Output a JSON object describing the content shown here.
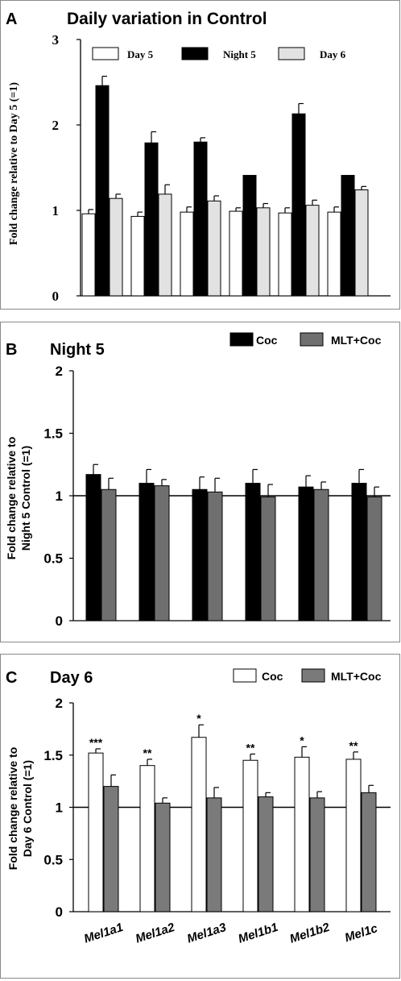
{
  "panels": [
    {
      "letter": "A",
      "title": "Daily variation in Control",
      "ylabel_lines": [
        "Fold change relative to Day 5 (=1)"
      ],
      "yticks": [
        "0",
        "1",
        "2",
        "3"
      ],
      "legend": [
        "Day 5",
        "Night 5",
        "Day 6"
      ]
    },
    {
      "letter": "B",
      "title": "Night 5",
      "ylabel_lines": [
        "Fold change relative to",
        "Night 5 Control (=1)"
      ],
      "yticks": [
        "0",
        "0.5",
        "1",
        "1.5",
        "2"
      ],
      "legend": [
        "Coc",
        "MLT+Coc"
      ]
    },
    {
      "letter": "C",
      "title": "Day 6",
      "ylabel_lines": [
        "Fold change relative to",
        "Day 6 Control (=1)"
      ],
      "yticks": [
        "0",
        "0.5",
        "1",
        "1.5",
        "2"
      ],
      "legend": [
        "Coc",
        "MLT+Coc"
      ]
    }
  ],
  "chart_data": [
    {
      "type": "bar",
      "title": "Daily variation in Control",
      "ylabel": "Fold change relative to Day 5 (=1)",
      "ylim": [
        0,
        3
      ],
      "categories": [
        "Mel1a1",
        "Mel1a2",
        "Mel1a3",
        "Mel1b1",
        "Mel1b2",
        "Mel1c"
      ],
      "series": [
        {
          "name": "Day 5",
          "color": "#ffffff",
          "values": [
            0.96,
            0.93,
            0.98,
            0.99,
            0.97,
            0.98
          ],
          "errors": [
            0.05,
            0.05,
            0.06,
            0.04,
            0.06,
            0.06
          ]
        },
        {
          "name": "Night 5",
          "color": "#000000",
          "values": [
            2.46,
            1.79,
            1.8,
            1.41,
            2.13,
            1.41
          ],
          "errors": [
            0.11,
            0.13,
            0.05,
            0.0,
            0.12,
            0.0
          ]
        },
        {
          "name": "Day 6",
          "color": "#e2e2e2",
          "values": [
            1.14,
            1.19,
            1.11,
            1.03,
            1.06,
            1.24
          ],
          "errors": [
            0.05,
            0.11,
            0.06,
            0.05,
            0.06,
            0.04
          ]
        }
      ]
    },
    {
      "type": "bar",
      "title": "Night 5",
      "ylabel": "Fold change relative to Night 5 Control (=1)",
      "ylim": [
        0,
        2
      ],
      "reference_line": 1,
      "categories": [
        "Mel1a1",
        "Mel1a2",
        "Mel1a3",
        "Mel1b1",
        "Mel1b2",
        "Mel1c"
      ],
      "series": [
        {
          "name": "Coc",
          "color": "#000000",
          "values": [
            1.17,
            1.1,
            1.05,
            1.1,
            1.07,
            1.1
          ],
          "errors": [
            0.08,
            0.11,
            0.1,
            0.11,
            0.09,
            0.11
          ]
        },
        {
          "name": "MLT+Coc",
          "color": "#6f6f6f",
          "values": [
            1.05,
            1.08,
            1.03,
            0.99,
            1.05,
            0.99
          ],
          "errors": [
            0.09,
            0.05,
            0.11,
            0.1,
            0.06,
            0.08
          ]
        }
      ]
    },
    {
      "type": "bar",
      "title": "Day 6",
      "ylabel": "Fold change relative to Day 6 Control (=1)",
      "ylim": [
        0,
        2
      ],
      "reference_line": 1,
      "categories": [
        "Mel1a1",
        "Mel1a2",
        "Mel1a3",
        "Mel1b1",
        "Mel1b2",
        "Mel1c"
      ],
      "significance": [
        "***",
        "**",
        "*",
        "**",
        "*",
        "**"
      ],
      "series": [
        {
          "name": "Coc",
          "color": "#ffffff",
          "values": [
            1.52,
            1.4,
            1.67,
            1.45,
            1.48,
            1.46
          ],
          "errors": [
            0.04,
            0.06,
            0.12,
            0.06,
            0.1,
            0.07
          ]
        },
        {
          "name": "MLT+Coc",
          "color": "#7a7a7a",
          "values": [
            1.2,
            1.04,
            1.09,
            1.1,
            1.09,
            1.14
          ],
          "errors": [
            0.11,
            0.05,
            0.1,
            0.04,
            0.06,
            0.07
          ]
        }
      ]
    }
  ]
}
